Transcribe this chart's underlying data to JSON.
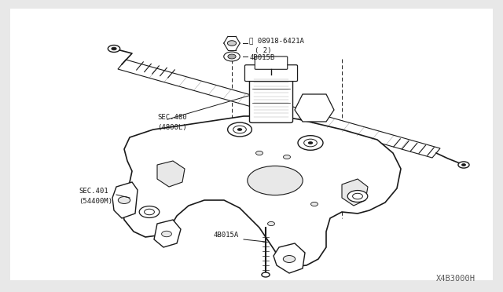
{
  "bg_color": "#ffffff",
  "diagram_id": "X4B3000H",
  "label_N": "Ⓞ 08918-6421A",
  "label_N2": "( 2)",
  "label_4B015B": "4B015B",
  "label_SEC480": "SEC.480",
  "label_4800L": "(4800L)",
  "label_SEC401": "SEC.401",
  "label_54400M": "(54400M)",
  "label_4B015A": "4B015A",
  "line_color": "#1a1a1a",
  "bg_outer": "#e8e8e8"
}
